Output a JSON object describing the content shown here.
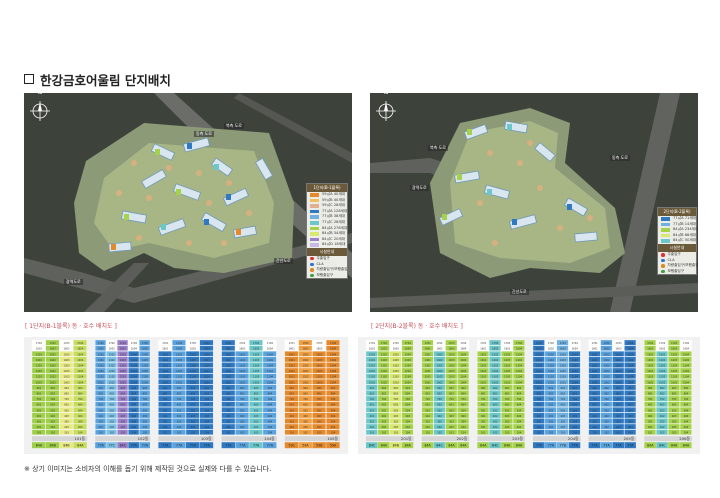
{
  "title": "한강금호어울림 단지배치",
  "footnote": "※ 상기 이미지는 소비자의 이해를 돕기 위해 제작된 것으로 실제와 다를 수 있습니다.",
  "sections": [
    {
      "label": "[ 1단지(B-1블록) 동 · 호수 배치도 ]"
    },
    {
      "label": "[ 2단지(B-2블록) 동 · 호수 배치도 ]"
    }
  ],
  "map1": {
    "compass": "N",
    "roads": [
      "동측 도로",
      "북측 도로",
      "광역도로",
      "간선도로"
    ],
    "legend_title": "1단지(B-1블록)",
    "legend": [
      {
        "label": "59㎡A  40세대",
        "color": "#e58a2c"
      },
      {
        "label": "59㎡B  40세대",
        "color": "#f0c060"
      },
      {
        "label": "59㎡C  28세대",
        "color": "#e0b090"
      },
      {
        "label": "77㎡A  128세대",
        "color": "#2f79c2"
      },
      {
        "label": "77㎡B  38세대",
        "color": "#6fb0e0"
      },
      {
        "label": "77㎡C  28세대",
        "color": "#6bc7c9"
      },
      {
        "label": "84㎡A  276세대",
        "color": "#a5d24a"
      },
      {
        "label": "84㎡B  34세대",
        "color": "#d8e870"
      },
      {
        "label": "84㎡C  20세대",
        "color": "#9b7fc8"
      },
      {
        "label": "84㎡D  18세대",
        "color": "#c9b7e4"
      }
    ],
    "legend2_title": "시설안내",
    "legend2": [
      {
        "label": "주출입구",
        "color": "#e03030"
      },
      {
        "label": "CLA",
        "color": "#3070d0"
      },
      {
        "label": "차량출입구/보행출입",
        "color": "#d98a20"
      },
      {
        "label": "보행출입구",
        "color": "#40a040"
      }
    ]
  },
  "map2": {
    "compass": "N",
    "roads": [
      "북측 도로",
      "광역도로",
      "동측 도로",
      "간선도로"
    ],
    "legend_title": "2단지(B-2블록)",
    "legend": [
      {
        "label": "77㎡A  71세대",
        "color": "#2f79c2"
      },
      {
        "label": "77㎡B  14세대",
        "color": "#6fb0e0"
      },
      {
        "label": "84㎡A  234세대",
        "color": "#a5d24a"
      },
      {
        "label": "84㎡B  68세대",
        "color": "#d8e870"
      },
      {
        "label": "84㎡C  50세대",
        "color": "#6bc7c9"
      }
    ],
    "legend2_title": "시설안내",
    "legend2": [
      {
        "label": "주출입구",
        "color": "#e03030"
      },
      {
        "label": "CLA",
        "color": "#3070d0"
      },
      {
        "label": "차량출입구/보행출입",
        "color": "#d98a20"
      },
      {
        "label": "보행출입구",
        "color": "#40a040"
      }
    ]
  },
  "buildings1": [
    {
      "name": "101동",
      "cols": [
        "#9fcf48",
        "#9fcf48",
        "#e8ea86",
        "#c7dd5e"
      ],
      "types": [
        "84A",
        "84B",
        "84B",
        "84A"
      ]
    },
    {
      "name": "102동",
      "cols": [
        "#5aa3de",
        "#7cc0e6",
        "#9b7fc8",
        "#2f79c2",
        "#5aa3de"
      ],
      "types": [
        "77A",
        "77C",
        "84C",
        "77A",
        "77A"
      ]
    },
    {
      "name": "103동",
      "cols": [
        "#2f79c2",
        "#5aa3de",
        "#2f79c2",
        "#2f79c2"
      ],
      "types": [
        "77A",
        "77A",
        "77A",
        "77A"
      ]
    },
    {
      "name": "104동",
      "cols": [
        "#2f79c2",
        "#5aa3de",
        "#6bc7c9",
        "#5aa3de"
      ],
      "types": [
        "77A",
        "77A",
        "77A",
        "77A"
      ]
    },
    {
      "name": "105동",
      "cols": [
        "#e58a2c",
        "#f0a040",
        "#e58a2c",
        "#e58a2c"
      ],
      "types": [
        "59C",
        "59A",
        "59B",
        "59A"
      ]
    }
  ],
  "buildings2": [
    {
      "name": "201동",
      "cols": [
        "#6bc7c9",
        "#a5d24a",
        "#d8e870",
        "#a5d24a"
      ],
      "types": [
        "84C",
        "84A",
        "84B",
        "84A"
      ]
    },
    {
      "name": "202동",
      "cols": [
        "#a5d24a",
        "#6bc7c9",
        "#a5d24a",
        "#a5d24a"
      ],
      "types": [
        "84A",
        "84C",
        "84A",
        "84A"
      ]
    },
    {
      "name": "203동",
      "cols": [
        "#a5d24a",
        "#6bc7c9",
        "#a5d24a",
        "#a5d24a"
      ],
      "types": [
        "84A",
        "84C",
        "84A",
        "84A"
      ]
    },
    {
      "name": "204동",
      "cols": [
        "#2f79c2",
        "#5aa3de",
        "#6fb0e0",
        "#2f79c2"
      ],
      "types": [
        "77A",
        "77A",
        "77B",
        "77A"
      ]
    },
    {
      "name": "205동",
      "cols": [
        "#2f79c2",
        "#5aa3de",
        "#2f79c2",
        "#2f79c2"
      ],
      "types": [
        "77A",
        "77A",
        "77A",
        "77A"
      ]
    },
    {
      "name": "206동",
      "cols": [
        "#a5d24a",
        "#6bc7c9",
        "#a5d24a",
        "#a5d24a"
      ],
      "types": [
        "84A",
        "84C",
        "84A",
        "84A"
      ]
    }
  ]
}
